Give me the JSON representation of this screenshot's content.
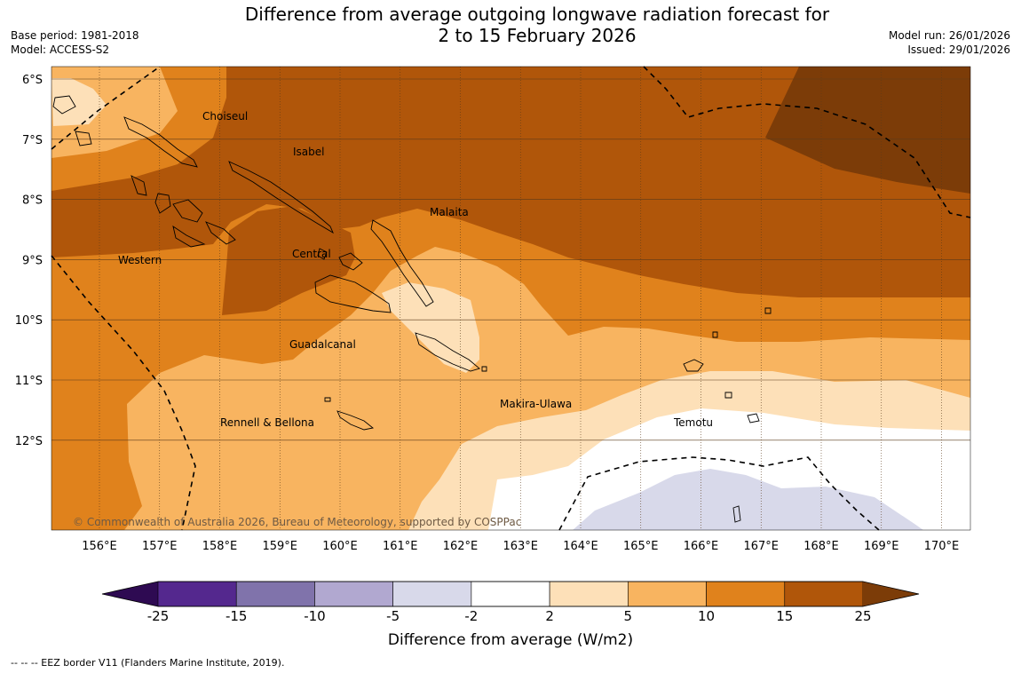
{
  "title": {
    "line1": "Difference from average outgoing longwave radiation forecast for",
    "line2": "2 to 15 February 2026"
  },
  "meta": {
    "base_period": "Base period: 1981-2018",
    "model": "Model: ACCESS-S2",
    "model_run": "Model run: 26/01/2026",
    "issued": "Issued: 29/01/2026"
  },
  "map": {
    "latitude_labels": [
      "6°S",
      "7°S",
      "8°S",
      "9°S",
      "10°S",
      "11°S",
      "12°S"
    ],
    "longitude_labels": [
      "156°E",
      "157°E",
      "158°E",
      "159°E",
      "160°E",
      "161°E",
      "162°E",
      "163°E",
      "164°E",
      "165°E",
      "166°E",
      "167°E",
      "168°E",
      "169°E",
      "170°E"
    ],
    "regions": [
      "Choiseul",
      "Isabel",
      "Malaita",
      "Western",
      "Central",
      "Guadalcanal",
      "Makira-Ulawa",
      "Rennell & Bellona",
      "Temotu"
    ],
    "copyright": "© Commonwealth of Australia 2026, Bureau of Meteorology, supported by COSPPac",
    "fill_colors": {
      "15_to_25": "#b0560a",
      "above_25": "#7c3c08",
      "10_to_15": "#e0821c",
      "5_to_10": "#f8b460",
      "2_to_5": "#fde0b8",
      "minus2_to_2": "#ffffff",
      "minus5_to_minus2": "#d8d9ea"
    }
  },
  "colorbar": {
    "ticks": [
      "-25",
      "-15",
      "-10",
      "-5",
      "-2",
      "2",
      "5",
      "10",
      "15",
      "25"
    ],
    "colors": [
      "#54288e",
      "#8073ab",
      "#b1a8d0",
      "#d8d9ea",
      "#ffffff",
      "#fde0b8",
      "#f8b460",
      "#e0821c",
      "#b0560a"
    ],
    "under_color": "#2e0a52",
    "over_color": "#7c3c08",
    "label": "Difference from average (W/m2)"
  },
  "footnote": "--  --  -- EEZ border V11 (Flanders Marine Institute, 2019)."
}
